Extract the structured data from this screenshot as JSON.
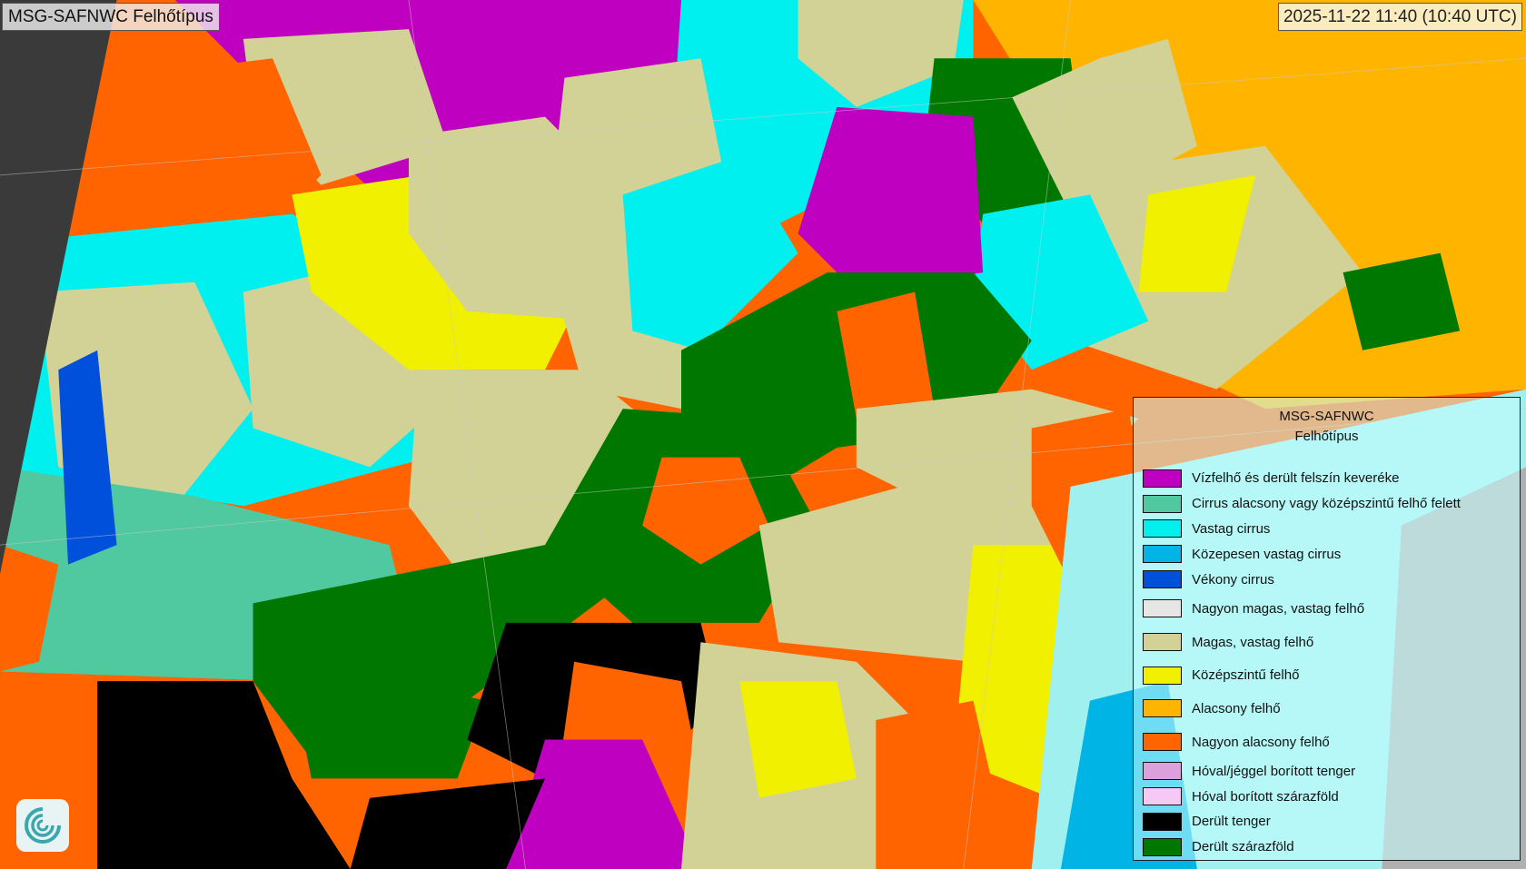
{
  "header": {
    "title": "MSG-SAFNWC Felhőtípus",
    "timestamp": "2025-11-22 11:40 (10:40 UTC)"
  },
  "legend": {
    "title_line1": "MSG-SAFNWC",
    "title_line2": "Felhőtípus",
    "items": [
      {
        "label": "Vízfelhő és derült felszín keveréke",
        "color": "#c000c0"
      },
      {
        "label": "Cirrus alacsony vagy középszintű felhő felett",
        "color": "#50c8a0"
      },
      {
        "label": "Vastag cirrus",
        "color": "#00f0f0"
      },
      {
        "label": "Közepesen vastag cirrus",
        "color": "#00b4e6"
      },
      {
        "label": "Vékony cirrus",
        "color": "#0050dc"
      },
      {
        "label": "Nagyon magas, vastag felhő",
        "color": "#e6e6e6"
      },
      {
        "label": "Magas, vastag felhő",
        "color": "#d2d296"
      },
      {
        "label": "Középszintű felhő",
        "color": "#f0f000"
      },
      {
        "label": "Alacsony felhő",
        "color": "#ffb400"
      },
      {
        "label": "Nagyon alacsony felhő",
        "color": "#ff6400"
      },
      {
        "label": "Hóval/jéggel borított tenger",
        "color": "#dca0dc"
      },
      {
        "label": "Hóval borított szárazföld",
        "color": "#f5c8f5"
      },
      {
        "label": "Derült tenger",
        "color": "#000000"
      },
      {
        "label": "Derült szárazföld",
        "color": "#007800"
      }
    ]
  },
  "map": {
    "outside_disk_color": "#3a3a3a",
    "no_data_color": "#b0b0b0"
  }
}
